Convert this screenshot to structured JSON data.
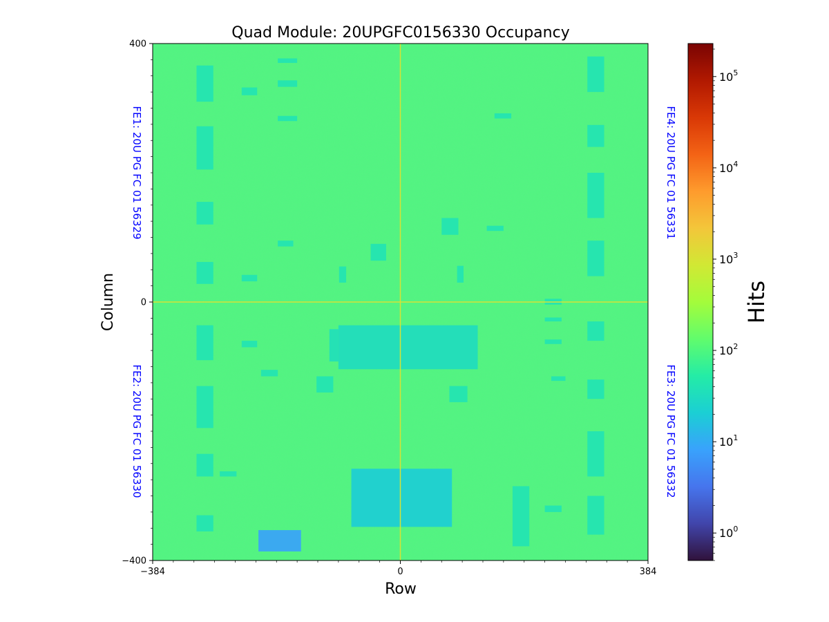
{
  "chart_data": {
    "type": "heatmap",
    "title": "Quad Module: 20UPGFC0156330 Occupancy",
    "xlabel": "Row",
    "ylabel": "Column",
    "xlim": [
      -384,
      384
    ],
    "ylim": [
      -400,
      400
    ],
    "x_ticks": [
      {
        "value": -384,
        "label": "−384"
      },
      {
        "value": 0,
        "label": "0"
      },
      {
        "value": 384,
        "label": "384"
      }
    ],
    "y_ticks": [
      {
        "value": 400,
        "label": "400"
      },
      {
        "value": 0,
        "label": "0"
      },
      {
        "value": -400,
        "label": "−400"
      }
    ],
    "colorbar": {
      "label": "Hits",
      "scale": "log",
      "range": [
        0.5,
        230000
      ],
      "tick_base": "10",
      "ticks": [
        {
          "value": 1,
          "exponent": "0"
        },
        {
          "value": 10,
          "exponent": "1"
        },
        {
          "value": 100,
          "exponent": "2"
        },
        {
          "value": 1000,
          "exponent": "3"
        },
        {
          "value": 10000,
          "exponent": "4"
        },
        {
          "value": 100000,
          "exponent": "5"
        }
      ],
      "colormap": [
        "#30123b",
        "#4145ab",
        "#4675ed",
        "#39a2fc",
        "#1bcfd4",
        "#24eca6",
        "#61fc6c",
        "#a4fc3b",
        "#d1e834",
        "#f3c63a",
        "#fe9b2d",
        "#f36315",
        "#d93806",
        "#b11901",
        "#7a0403"
      ]
    },
    "background_hits": 100,
    "frontends": [
      {
        "label": "FE1: 20U PG FC 01 56329",
        "quadrant": "top-left",
        "side": "left"
      },
      {
        "label": "FE4: 20U PG FC 01 56331",
        "quadrant": "top-right",
        "side": "right"
      },
      {
        "label": "FE2: 20U PG FC 01 56330",
        "quadrant": "bottom-left",
        "side": "left"
      },
      {
        "label": "FE3: 20U PG FC 01 56332",
        "quadrant": "bottom-right",
        "side": "right"
      }
    ],
    "label_color": "#0000ff",
    "low_occupancy_regions": [
      {
        "x": [
          -316,
          -290
        ],
        "y": [
          366,
          310
        ],
        "hits": 40
      },
      {
        "x": [
          -316,
          -290
        ],
        "y": [
          272,
          205
        ],
        "hits": 40
      },
      {
        "x": [
          -316,
          -290
        ],
        "y": [
          155,
          120
        ],
        "hits": 40
      },
      {
        "x": [
          -316,
          -290
        ],
        "y": [
          62,
          28
        ],
        "hits": 40
      },
      {
        "x": [
          -246,
          -222
        ],
        "y": [
          332,
          320
        ],
        "hits": 40
      },
      {
        "x": [
          -246,
          -222
        ],
        "y": [
          42,
          32
        ],
        "hits": 40
      },
      {
        "x": [
          -190,
          -160
        ],
        "y": [
          377,
          370
        ],
        "hits": 40
      },
      {
        "x": [
          -190,
          -160
        ],
        "y": [
          343,
          333
        ],
        "hits": 40
      },
      {
        "x": [
          -190,
          -160
        ],
        "y": [
          288,
          280
        ],
        "hits": 40
      },
      {
        "x": [
          -190,
          -166
        ],
        "y": [
          95,
          86
        ],
        "hits": 40
      },
      {
        "x": [
          -95,
          -84
        ],
        "y": [
          55,
          30
        ],
        "hits": 40
      },
      {
        "x": [
          -46,
          -22
        ],
        "y": [
          90,
          64
        ],
        "hits": 40
      },
      {
        "x": [
          64,
          90
        ],
        "y": [
          130,
          104
        ],
        "hits": 40
      },
      {
        "x": [
          134,
          160
        ],
        "y": [
          118,
          110
        ],
        "hits": 40
      },
      {
        "x": [
          146,
          172
        ],
        "y": [
          292,
          284
        ],
        "hits": 40
      },
      {
        "x": [
          88,
          98
        ],
        "y": [
          56,
          30
        ],
        "hits": 40
      },
      {
        "x": [
          224,
          250
        ],
        "y": [
          5,
          -4
        ],
        "hits": 40
      },
      {
        "x": [
          224,
          250
        ],
        "y": [
          -24,
          -30
        ],
        "hits": 40
      },
      {
        "x": [
          290,
          316
        ],
        "y": [
          380,
          325
        ],
        "hits": 40
      },
      {
        "x": [
          290,
          316
        ],
        "y": [
          274,
          240
        ],
        "hits": 40
      },
      {
        "x": [
          290,
          316
        ],
        "y": [
          200,
          130
        ],
        "hits": 40
      },
      {
        "x": [
          290,
          316
        ],
        "y": [
          95,
          40
        ],
        "hits": 40
      },
      {
        "x": [
          -316,
          -290
        ],
        "y": [
          -36,
          -90
        ],
        "hits": 40
      },
      {
        "x": [
          -316,
          -290
        ],
        "y": [
          -130,
          -195
        ],
        "hits": 40
      },
      {
        "x": [
          -316,
          -290
        ],
        "y": [
          -235,
          -270
        ],
        "hits": 40
      },
      {
        "x": [
          -316,
          -290
        ],
        "y": [
          -330,
          -355
        ],
        "hits": 40
      },
      {
        "x": [
          -246,
          -222
        ],
        "y": [
          -60,
          -70
        ],
        "hits": 40
      },
      {
        "x": [
          -216,
          -190
        ],
        "y": [
          -105,
          -115
        ],
        "hits": 40
      },
      {
        "x": [
          -130,
          -104
        ],
        "y": [
          -115,
          -140
        ],
        "hits": 40
      },
      {
        "x": [
          -280,
          -254
        ],
        "y": [
          -262,
          -270
        ],
        "hits": 40
      },
      {
        "x": [
          -110,
          -96
        ],
        "y": [
          -42,
          -92
        ],
        "hits": 35
      },
      {
        "x": [
          -96,
          120
        ],
        "y": [
          -36,
          -104
        ],
        "hits": 32
      },
      {
        "x": [
          -76,
          80
        ],
        "y": [
          -258,
          -348
        ],
        "hits": 20
      },
      {
        "x": [
          -220,
          -154
        ],
        "y": [
          -353,
          -386
        ],
        "hits": 8
      },
      {
        "x": [
          76,
          104
        ],
        "y": [
          -130,
          -155
        ],
        "hits": 40
      },
      {
        "x": [
          174,
          200
        ],
        "y": [
          -285,
          -378
        ],
        "hits": 40
      },
      {
        "x": [
          224,
          250
        ],
        "y": [
          -58,
          -65
        ],
        "hits": 40
      },
      {
        "x": [
          234,
          256
        ],
        "y": [
          -115,
          -122
        ],
        "hits": 40
      },
      {
        "x": [
          224,
          250
        ],
        "y": [
          -315,
          -325
        ],
        "hits": 40
      },
      {
        "x": [
          290,
          316
        ],
        "y": [
          -200,
          -270
        ],
        "hits": 40
      },
      {
        "x": [
          290,
          316
        ],
        "y": [
          -300,
          -360
        ],
        "hits": 40
      },
      {
        "x": [
          290,
          316
        ],
        "y": [
          -120,
          -150
        ],
        "hits": 40
      },
      {
        "x": [
          290,
          316
        ],
        "y": [
          -30,
          -60
        ],
        "hits": 40
      }
    ],
    "high_occupancy_lines": [
      {
        "orientation": "vertical",
        "x": 0,
        "hits": 1000
      },
      {
        "orientation": "horizontal",
        "y": 0,
        "hits": 1000
      }
    ]
  }
}
